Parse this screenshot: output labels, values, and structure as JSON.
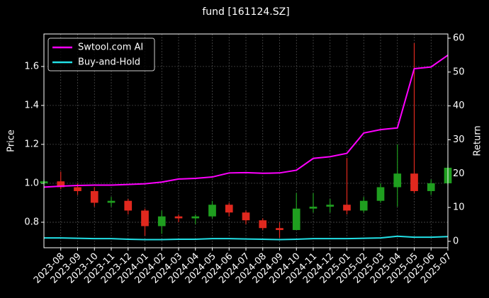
{
  "chart_data": {
    "type": "candlestick",
    "title": "fund [161124.SZ]",
    "ylabel": "Price",
    "y2label": "Return",
    "x": [
      "2023-07",
      "2023-08",
      "2023-09",
      "2023-10",
      "2023-11",
      "2023-12",
      "2024-01",
      "2024-02",
      "2024-03",
      "2024-04",
      "2024-05",
      "2024-06",
      "2024-07",
      "2024-08",
      "2024-09",
      "2024-10",
      "2024-11",
      "2024-12",
      "2025-01",
      "2025-02",
      "2025-03",
      "2025-04",
      "2025-05",
      "2025-06",
      "2025-07"
    ],
    "open": [
      1.0,
      1.01,
      0.98,
      0.96,
      0.9,
      0.91,
      0.86,
      0.78,
      0.83,
      0.82,
      0.83,
      0.89,
      0.85,
      0.81,
      0.77,
      0.76,
      0.87,
      0.88,
      0.89,
      0.86,
      0.91,
      0.98,
      1.05,
      0.96,
      1.0
    ],
    "high": [
      1.02,
      1.06,
      1.0,
      0.98,
      0.93,
      0.92,
      0.87,
      0.86,
      0.84,
      0.84,
      0.91,
      0.9,
      0.86,
      0.82,
      0.8,
      0.95,
      0.95,
      0.92,
      1.13,
      0.93,
      1.0,
      1.2,
      1.72,
      1.02,
      1.1
    ],
    "low": [
      0.99,
      0.97,
      0.94,
      0.88,
      0.88,
      0.84,
      0.73,
      0.74,
      0.8,
      0.79,
      0.82,
      0.83,
      0.79,
      0.76,
      0.72,
      0.76,
      0.85,
      0.85,
      0.84,
      0.85,
      0.9,
      0.88,
      0.95,
      0.94,
      0.99
    ],
    "close": [
      1.01,
      0.98,
      0.96,
      0.9,
      0.91,
      0.86,
      0.78,
      0.83,
      0.82,
      0.83,
      0.89,
      0.85,
      0.81,
      0.77,
      0.76,
      0.87,
      0.88,
      0.89,
      0.86,
      0.91,
      0.98,
      1.05,
      0.96,
      1.0,
      1.08
    ],
    "up_color": "#1f9e1f",
    "down_color": "#e0281e",
    "series": [
      {
        "name": "Swtool.com AI",
        "color": "#ff00ff",
        "axis": "y2",
        "values": [
          16,
          16.3,
          16.5,
          16.6,
          16.6,
          16.8,
          17,
          17.5,
          18.4,
          18.6,
          19,
          20.2,
          20.3,
          20.1,
          20.2,
          21,
          24.5,
          25,
          26,
          32,
          33,
          33.5,
          51,
          51.5,
          55
        ]
      },
      {
        "name": "Buy-and-Hold",
        "color": "#22e0e6",
        "axis": "y2",
        "values": [
          1,
          1,
          0.9,
          0.8,
          0.8,
          0.6,
          0.5,
          0.5,
          0.6,
          0.6,
          0.8,
          0.8,
          0.7,
          0.6,
          0.5,
          0.6,
          0.8,
          0.8,
          0.8,
          0.9,
          1,
          1.5,
          1.2,
          1.2,
          1.4
        ]
      }
    ],
    "xlim": [
      "2023-07",
      "2025-07"
    ],
    "xticks": [
      "2023-08",
      "2023-09",
      "2023-10",
      "2023-11",
      "2023-12",
      "2024-01",
      "2024-02",
      "2024-03",
      "2024-04",
      "2024-05",
      "2024-06",
      "2024-07",
      "2024-08",
      "2024-09",
      "2024-10",
      "2024-11",
      "2024-12",
      "2025-01",
      "2025-02",
      "2025-03",
      "2025-04",
      "2025-05",
      "2025-06",
      "2025-07"
    ],
    "ylim": [
      0.669,
      1.767
    ],
    "yticks": [
      0.8,
      {
        "value": 1,
        "label": "1.0"
      },
      1.2,
      1.4,
      1.6
    ],
    "y2lim": [
      -1.9,
      61.25
    ],
    "y2ticks": [
      0,
      10,
      20,
      30,
      40,
      50,
      60
    ],
    "grid": true,
    "legend": "upper left"
  }
}
